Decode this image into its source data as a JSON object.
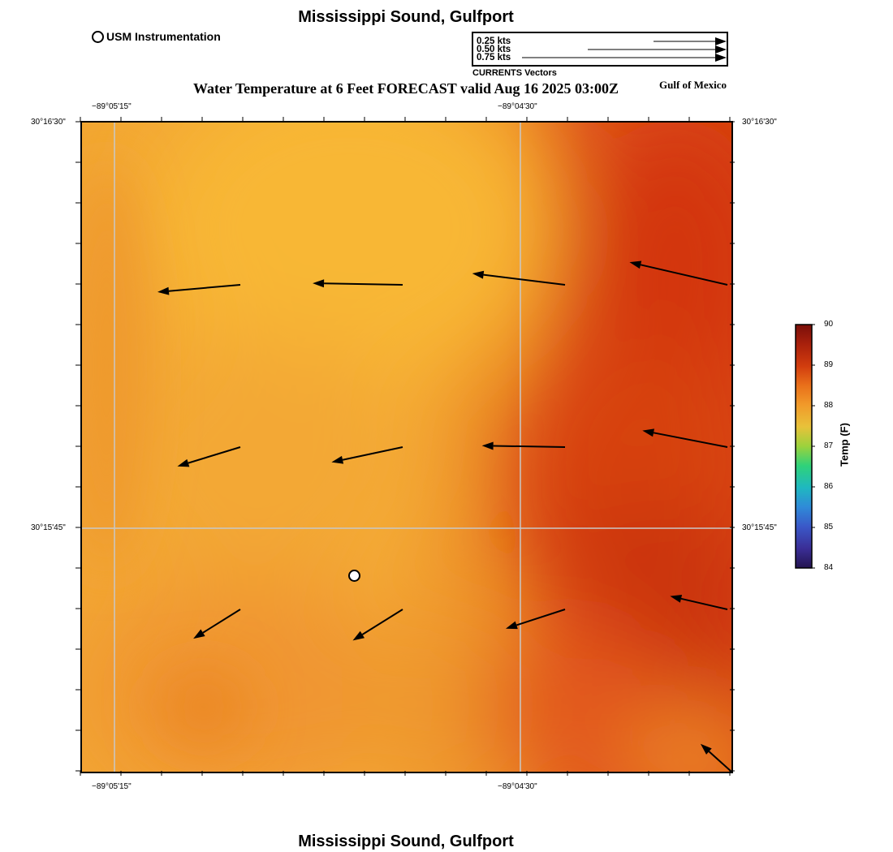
{
  "title": "Mississippi Sound, Gulfport",
  "footer_title": "Mississippi Sound, Gulfport",
  "legend_station": {
    "label": "USM Instrumentation",
    "icon": "open-circle-icon"
  },
  "subtitle": "Water Temperature at 6 Feet FORECAST valid Aug 16 2025 03:00Z",
  "region_label": "Gulf of Mexico",
  "vector_key": {
    "caption": "CURRENTS Vectors",
    "entries": [
      {
        "label": "0.25 kts",
        "speed_kts": 0.25
      },
      {
        "label": "0.50 kts",
        "speed_kts": 0.5
      },
      {
        "label": "0.75 kts",
        "speed_kts": 0.75
      }
    ]
  },
  "axes": {
    "lon_top": [
      "−89°05'15\"",
      "−89°04'30\""
    ],
    "lon_bottom": [
      "−89°05'15\"",
      "−89°04'30\""
    ],
    "lat_left": [
      "30°16'30\"",
      "30°15'45\""
    ],
    "lat_right": [
      "30°16'30\"",
      "30°15'45\""
    ]
  },
  "colorbar": {
    "label": "Temp (F)",
    "ticks": [
      "90",
      "89",
      "88",
      "87",
      "86",
      "85",
      "84"
    ],
    "range": [
      84,
      90
    ],
    "colors": [
      "#7a0f0a",
      "#c2300c",
      "#e0560f",
      "#ef8a1c",
      "#f4a62a",
      "#e9c93a",
      "#9cd23c",
      "#2fd27a",
      "#1fb8c0",
      "#2f7fd8",
      "#3a48b8",
      "#2b1a6a"
    ]
  },
  "current_vectors": [
    {
      "dir_deg": 265,
      "speed_kts": 0.24
    },
    {
      "dir_deg": 271,
      "speed_kts": 0.26
    },
    {
      "dir_deg": 277,
      "speed_kts": 0.27
    },
    {
      "dir_deg": 283,
      "speed_kts": 0.29
    },
    {
      "dir_deg": 253,
      "speed_kts": 0.19
    },
    {
      "dir_deg": 258,
      "speed_kts": 0.21
    },
    {
      "dir_deg": 271,
      "speed_kts": 0.24
    },
    {
      "dir_deg": 281,
      "speed_kts": 0.25
    },
    {
      "dir_deg": 238,
      "speed_kts": 0.16
    },
    {
      "dir_deg": 238,
      "speed_kts": 0.17
    },
    {
      "dir_deg": 252,
      "speed_kts": 0.18
    },
    {
      "dir_deg": 283,
      "speed_kts": 0.17
    },
    {
      "dir_deg": 312,
      "speed_kts": 0.12
    }
  ]
}
